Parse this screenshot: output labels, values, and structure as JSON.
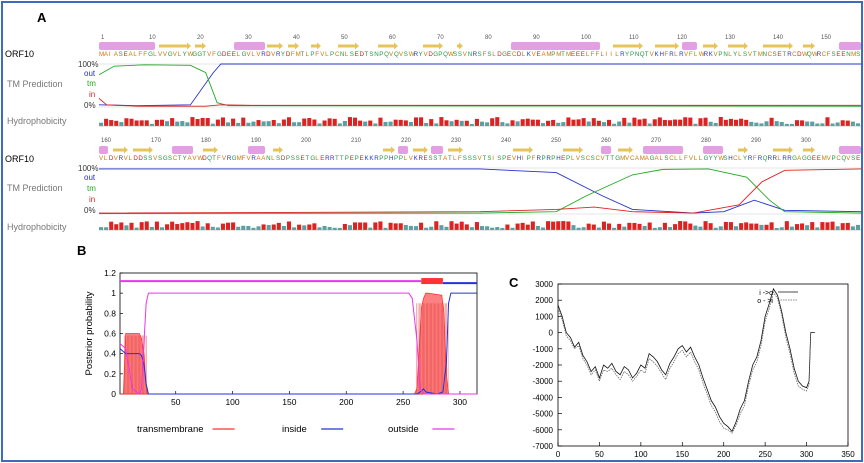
{
  "panel_a": {
    "label": "A",
    "row1": {
      "seq_name": "ORF10",
      "ruler": [
        "1",
        "10",
        "20",
        "30",
        "40",
        "50",
        "60",
        "70",
        "80",
        "90",
        "100",
        "110",
        "120",
        "130",
        "140",
        "150"
      ],
      "sequence": "MAIASEALFFGLVVGVLYWGGTVFGDEELGVLVRDVRYDFMTLPFVLPCNLSEDTSNPQVQVSWRYVDGPQWSSVNRSFSLDGECDLKVEAMPMTMEEELFFLIILRYPNQTVKHFRLRVFLWRKVPNLYLSVTMNCSETRCDWQWRCFSEENMS"
    },
    "row2": {
      "seq_name": "ORF10",
      "ruler": [
        "160",
        "170",
        "180",
        "190",
        "200",
        "210",
        "220",
        "230",
        "240",
        "250",
        "260",
        "270",
        "280",
        "290",
        "300"
      ],
      "sequence": "VLDVRVLDDSSVSGSCTYAVWDQTFVRGMFVRAANLSDPSSETGLERRTTPEPEKKRPPHPPLVKRESSTATLFSSSVTSISPEVHIPFRPRPHEPLVSCSCVTTGMVCAMAGALSCLLFVLLGYYWSHCLYRFRQRRLRRGAGGEEMVPCQVSE"
    },
    "track_labels": {
      "pct100": "100%",
      "pct0": "0%",
      "tm_prediction": "TM Prediction",
      "out": "out",
      "tm": "tm",
      "in": "in",
      "hydrophobicity": "Hydrophobicity"
    },
    "colors": {
      "out": "#2233cc",
      "tm": "#22aa22",
      "in": "#dd2222",
      "helix": "#e49ee4",
      "strand": "#e6c45a",
      "hydro_high": "#dd2222",
      "hydro_low": "#5aa0a0"
    }
  },
  "panel_b_label": "B",
  "panel_c_label": "C",
  "chart_data": [
    {
      "type": "line",
      "panel": "B",
      "xlabel": "",
      "ylabel": "Posterior probability",
      "xlim": [
        1,
        315
      ],
      "ylim": [
        0,
        1.2
      ],
      "xticks": [
        "50",
        "100",
        "150",
        "200",
        "250",
        "300"
      ],
      "yticks": [
        "0",
        "0.2",
        "0.4",
        "0.6",
        "0.8",
        "1",
        "1.2"
      ],
      "top_line_value": 1.12,
      "tm_segments_on_top_line": [
        [
          266,
          285
        ]
      ],
      "series": [
        {
          "name": "transmembrane",
          "color": "#ff3333",
          "style": "filled bars",
          "x": [
            1,
            4,
            5,
            6,
            18,
            20,
            22,
            24,
            25,
            260,
            262,
            264,
            266,
            268,
            270,
            272,
            284,
            286,
            288,
            290
          ],
          "y": [
            0,
            0,
            0.3,
            0.6,
            0.6,
            0.55,
            0.4,
            0.1,
            0,
            0,
            0.05,
            0.4,
            0.85,
            0.95,
            1.0,
            1.0,
            0.98,
            0.8,
            0.2,
            0
          ]
        },
        {
          "name": "inside",
          "color": "#2233dd",
          "x": [
            1,
            4,
            6,
            10,
            15,
            18,
            20,
            22,
            24,
            26,
            258,
            262,
            265,
            268,
            270,
            280,
            285,
            288,
            290,
            292,
            295,
            300,
            315
          ],
          "y": [
            0.45,
            0.42,
            0.4,
            0.4,
            0.4,
            0.4,
            0.38,
            0.3,
            0.1,
            0,
            0,
            0,
            0.02,
            0.05,
            0.02,
            0,
            0.02,
            0.3,
            0.9,
            1.0,
            1.0,
            1.0,
            1.0
          ]
        },
        {
          "name": "outside",
          "color": "#ee33ee",
          "x": [
            1,
            6,
            12,
            18,
            20,
            22,
            24,
            26,
            28,
            30,
            100,
            200,
            255,
            258,
            262,
            265,
            268,
            270,
            275,
            280,
            286,
            290,
            295,
            315
          ],
          "y": [
            0.5,
            0.45,
            0.05,
            0,
            0.05,
            0.5,
            0.9,
            1.0,
            1.0,
            1.0,
            1.0,
            1.0,
            1.0,
            0.95,
            0.55,
            0.05,
            0,
            0,
            0,
            0,
            0,
            0,
            0,
            0
          ]
        }
      ]
    },
    {
      "type": "line",
      "panel": "C",
      "xlim": [
        0,
        350
      ],
      "ylim": [
        -7000,
        3000
      ],
      "xticks": [
        "0",
        "50",
        "100",
        "150",
        "200",
        "250",
        "300",
        "350"
      ],
      "yticks": [
        "3000",
        "2000",
        "1000",
        "0",
        "-1000",
        "-2000",
        "-3000",
        "-4000",
        "-5000",
        "-6000",
        "-7000"
      ],
      "legend_position": "top-right",
      "series": [
        {
          "name": "i ->o",
          "style": "solid",
          "x": [
            0,
            5,
            10,
            15,
            20,
            25,
            30,
            35,
            40,
            45,
            50,
            55,
            60,
            65,
            70,
            75,
            80,
            85,
            90,
            95,
            100,
            105,
            110,
            115,
            120,
            125,
            130,
            135,
            140,
            145,
            150,
            155,
            160,
            165,
            170,
            175,
            180,
            185,
            190,
            195,
            200,
            205,
            210,
            215,
            220,
            225,
            230,
            235,
            240,
            245,
            250,
            255,
            260,
            265,
            270,
            275,
            280,
            285,
            290,
            295,
            300,
            303,
            305,
            308,
            310
          ],
          "y": [
            1700,
            1000,
            0,
            -300,
            -900,
            -600,
            -1400,
            -1800,
            -2400,
            -2100,
            -2800,
            -2000,
            -2200,
            -1900,
            -2400,
            -2600,
            -2100,
            -2300,
            -2800,
            -2500,
            -2000,
            -2200,
            -1300,
            -1500,
            -1800,
            -2300,
            -2600,
            -1900,
            -1500,
            -1000,
            -800,
            -1200,
            -900,
            -1500,
            -2000,
            -2800,
            -3500,
            -4200,
            -4600,
            -5200,
            -5600,
            -5800,
            -6100,
            -5500,
            -4700,
            -4200,
            -3000,
            -2000,
            -1500,
            -500,
            1000,
            1800,
            2700,
            2300,
            1300,
            0,
            -1000,
            -2200,
            -3000,
            -3300,
            -3400,
            -3000,
            0,
            0,
            0
          ]
        },
        {
          "name": "o - >i",
          "style": "dashed",
          "x": [
            0,
            5,
            10,
            15,
            20,
            25,
            30,
            35,
            40,
            45,
            50,
            55,
            60,
            65,
            70,
            75,
            80,
            85,
            90,
            95,
            100,
            105,
            110,
            115,
            120,
            125,
            130,
            135,
            140,
            145,
            150,
            155,
            160,
            165,
            170,
            175,
            180,
            185,
            190,
            195,
            200,
            205,
            210,
            215,
            220,
            225,
            230,
            235,
            240,
            245,
            250,
            255,
            260,
            265,
            270,
            275,
            280,
            285,
            290,
            295,
            300,
            303,
            305
          ],
          "y": [
            1500,
            800,
            -200,
            -500,
            -1000,
            -800,
            -1600,
            -2000,
            -2600,
            -2300,
            -3000,
            -2300,
            -2400,
            -2200,
            -2600,
            -2900,
            -2400,
            -2600,
            -3000,
            -2700,
            -2300,
            -2500,
            -1600,
            -1800,
            -2100,
            -2500,
            -2900,
            -2200,
            -1800,
            -1300,
            -1100,
            -1500,
            -1200,
            -1800,
            -2300,
            -3100,
            -3800,
            -4500,
            -4900,
            -5500,
            -5900,
            -6000,
            -6200,
            -5700,
            -5000,
            -4500,
            -3300,
            -2300,
            -1800,
            -800,
            700,
            1500,
            2500,
            2100,
            1100,
            -300,
            -1300,
            -2500,
            -3300,
            -3500,
            -3600,
            -3200,
            0
          ]
        }
      ]
    }
  ],
  "panel_b_legend": [
    {
      "name": "transmembrane",
      "color": "#ff3333"
    },
    {
      "name": "inside",
      "color": "#2233dd"
    },
    {
      "name": "outside",
      "color": "#ee33ee"
    }
  ]
}
